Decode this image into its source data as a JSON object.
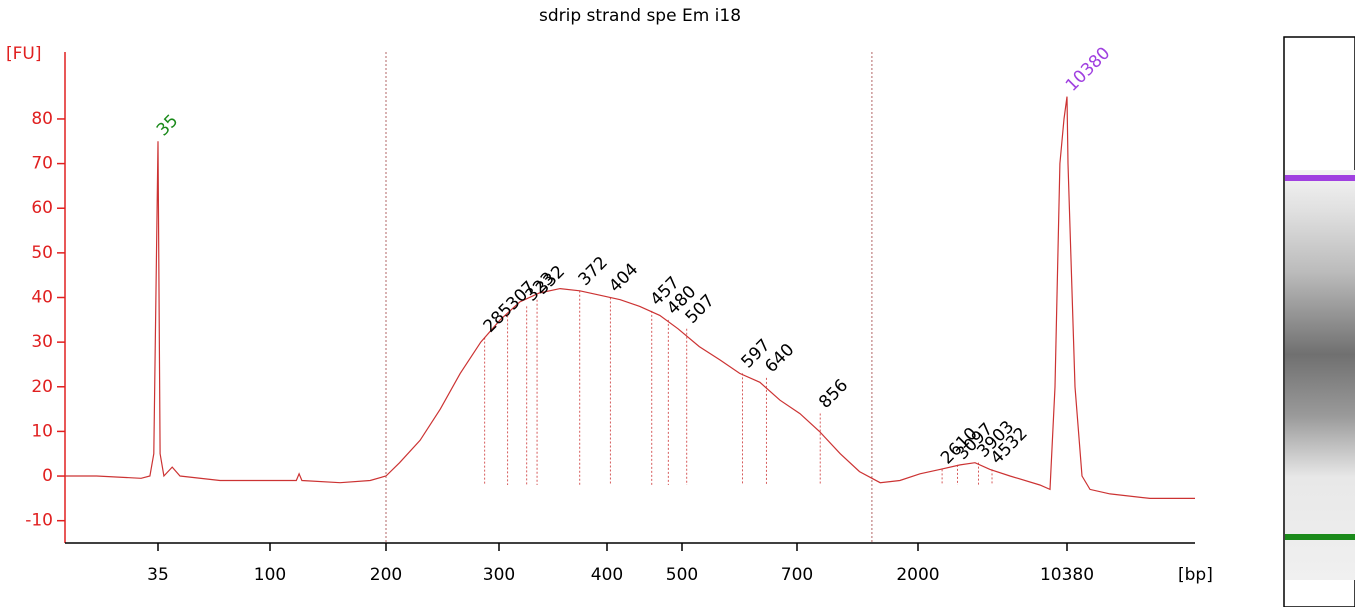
{
  "chart_data": {
    "type": "line",
    "title": "sdrip strand spe Em i18",
    "y_label": "[FU]",
    "x_label": "[bp]",
    "xlim": [
      15,
      42700
    ],
    "ylim": [
      -15,
      95
    ],
    "xticks": [
      35,
      100,
      200,
      300,
      400,
      500,
      700,
      2000,
      10380
    ],
    "yticks": [
      -10,
      0,
      10,
      20,
      30,
      40,
      50,
      60,
      70,
      80
    ],
    "region_bounds": [
      200,
      1341
    ],
    "series": [
      {
        "color": "#cc3333",
        "x": [
          15,
          20,
          30,
          32.5,
          33.7,
          34.7,
          35,
          35.7,
          37,
          40,
          43,
          62.6,
          91,
          117,
          119,
          121,
          152,
          182,
          200,
          210,
          226,
          243,
          261,
          281,
          301,
          317,
          334,
          353,
          372,
          393,
          416,
          441,
          468,
          494,
          526,
          559,
          592,
          628,
          666,
          718,
          850,
          1018,
          1204,
          1441,
          1709,
          2045,
          2551,
          3184,
          3756,
          4433,
          5530,
          7697,
          8604,
          9090,
          9600,
          10036,
          10380,
          10495,
          11335,
          12250,
          13380,
          16690,
          25940,
          42700
        ],
        "values": [
          0,
          0,
          -0.5,
          0,
          5,
          60,
          75,
          5,
          0,
          2,
          0,
          -1,
          -1,
          -1,
          0.5,
          -1,
          -1.5,
          -1,
          0,
          3,
          8,
          15,
          23,
          30,
          35,
          39,
          41,
          42,
          41.5,
          40.5,
          39.5,
          38,
          36,
          33,
          29,
          26,
          23,
          21,
          17,
          14,
          10,
          5,
          1,
          -1.5,
          -1,
          0.5,
          1.5,
          2.5,
          3,
          1.5,
          0,
          -2,
          -3,
          20,
          70,
          80,
          85,
          70,
          20,
          0,
          -3,
          -4,
          -5,
          -5
        ]
      }
    ],
    "peaks": [
      {
        "label": 35,
        "fu": 75,
        "color": "#1a8a1a"
      },
      {
        "label": 285,
        "fu": 31,
        "color": "#000000"
      },
      {
        "label": 307,
        "fu": 36,
        "color": "#000000"
      },
      {
        "label": 323,
        "fu": 38,
        "color": "#000000"
      },
      {
        "label": 332,
        "fu": 39.5,
        "color": "#000000"
      },
      {
        "label": 372,
        "fu": 41.5,
        "color": "#000000"
      },
      {
        "label": 404,
        "fu": 40,
        "color": "#000000"
      },
      {
        "label": 457,
        "fu": 37,
        "color": "#000000"
      },
      {
        "label": 480,
        "fu": 35,
        "color": "#000000"
      },
      {
        "label": 507,
        "fu": 33,
        "color": "#000000"
      },
      {
        "label": 597,
        "fu": 23,
        "color": "#000000"
      },
      {
        "label": 640,
        "fu": 22,
        "color": "#000000"
      },
      {
        "label": 856,
        "fu": 14,
        "color": "#000000"
      },
      {
        "label": 2610,
        "fu": 1.5,
        "color": "#000000"
      },
      {
        "label": 3097,
        "fu": 2.5,
        "color": "#000000"
      },
      {
        "label": 3903,
        "fu": 3,
        "color": "#000000"
      },
      {
        "label": 4532,
        "fu": 1.5,
        "color": "#000000"
      },
      {
        "label": 10380,
        "fu": 85,
        "color": "#a040e0"
      }
    ]
  }
}
